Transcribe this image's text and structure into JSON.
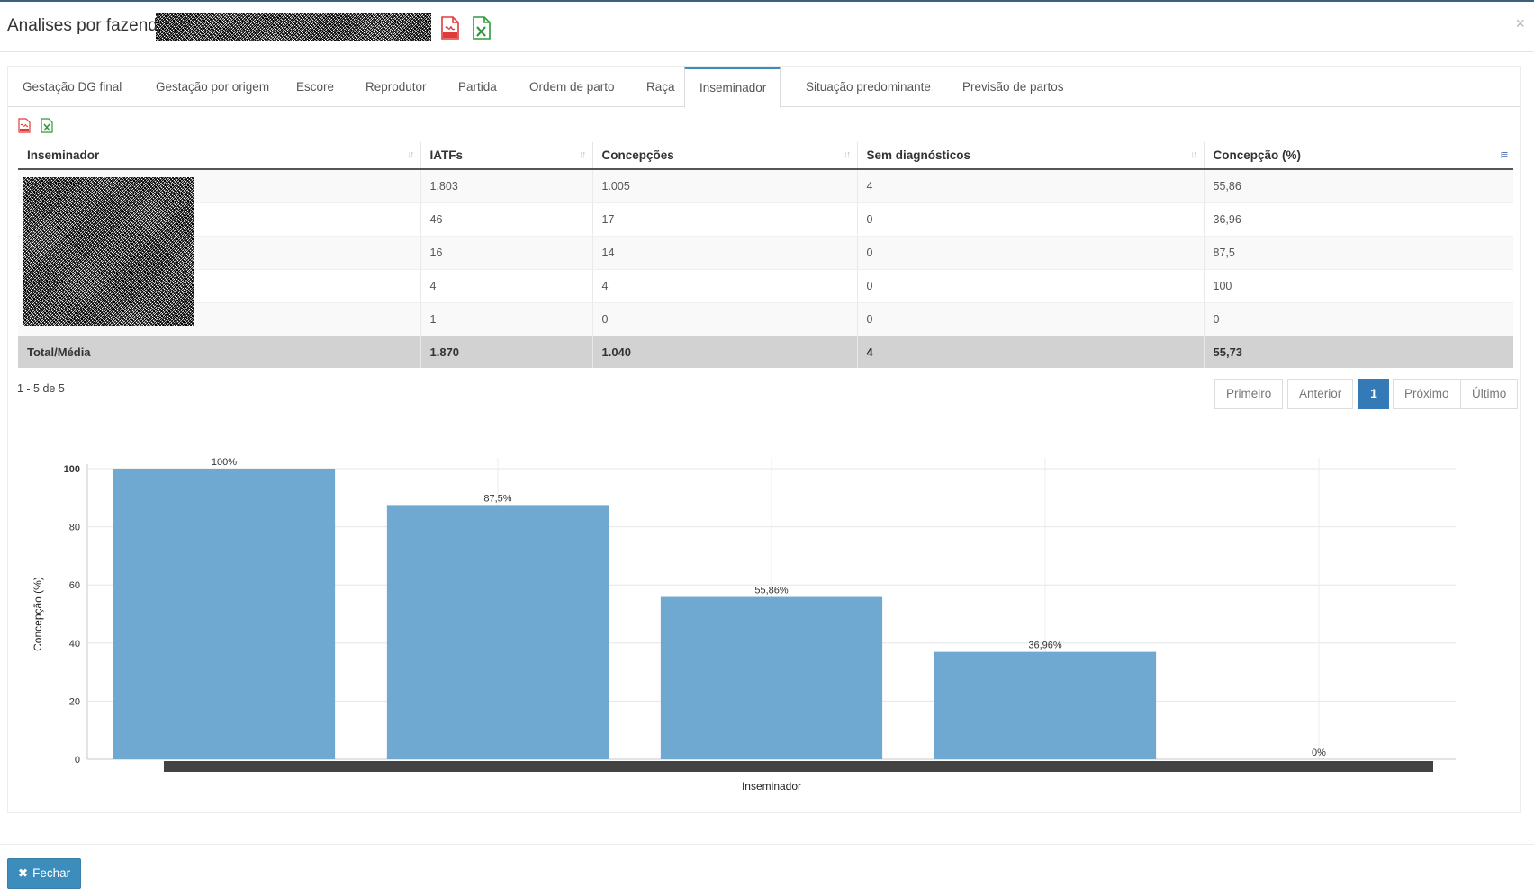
{
  "header": {
    "title": "Analises por fazendas",
    "close_symbol": "×"
  },
  "icons": {
    "pdf": "file-pdf-icon",
    "excel": "file-excel-icon",
    "close": "close-icon",
    "sort": "sort-icon",
    "times": "times-icon"
  },
  "tabs": [
    {
      "label": "Gestação DG final"
    },
    {
      "label": "Gestação por origem"
    },
    {
      "label": "Escore"
    },
    {
      "label": "Reprodutor"
    },
    {
      "label": "Partida"
    },
    {
      "label": "Ordem de parto"
    },
    {
      "label": "Raça"
    },
    {
      "label": "Inseminador",
      "active": true
    },
    {
      "label": "Situação predominante"
    },
    {
      "label": "Previsão de partos"
    }
  ],
  "table": {
    "columns": [
      "Inseminador",
      "IATFs",
      "Concepções",
      "Sem diagnósticos",
      "Concepção (%)"
    ],
    "rows": [
      {
        "iatfs": "1.803",
        "concepcoes": "1.005",
        "sem_diag": "4",
        "concepcao_pct": "55,86"
      },
      {
        "iatfs": "46",
        "concepcoes": "17",
        "sem_diag": "0",
        "concepcao_pct": "36,96"
      },
      {
        "iatfs": "16",
        "concepcoes": "14",
        "sem_diag": "0",
        "concepcao_pct": "87,5"
      },
      {
        "iatfs": "4",
        "concepcoes": "4",
        "sem_diag": "0",
        "concepcao_pct": "100"
      },
      {
        "iatfs": "1",
        "concepcoes": "0",
        "sem_diag": "0",
        "concepcao_pct": "0"
      }
    ],
    "total": {
      "label": "Total/Média",
      "iatfs": "1.870",
      "concepcoes": "1.040",
      "sem_diag": "4",
      "concepcao_pct": "55,73"
    }
  },
  "pagination": {
    "count_text": "1 - 5 de 5",
    "first": "Primeiro",
    "prev": "Anterior",
    "current": "1",
    "next": "Próximo",
    "last": "Último"
  },
  "chart_data": {
    "type": "bar",
    "title": "",
    "xlabel": "Inseminador",
    "ylabel": "Concepção (%)",
    "ylim": [
      0,
      100
    ],
    "yticks": [
      0,
      20,
      40,
      60,
      80,
      100
    ],
    "values": [
      100,
      87.5,
      55.86,
      36.96,
      0
    ],
    "data_labels": [
      "100%",
      "87,5%",
      "55,86%",
      "36,96%",
      "0%"
    ],
    "bar_color": "#6fa8d0",
    "grid": true
  },
  "footer": {
    "close_label": "Fechar"
  },
  "colors": {
    "accent": "#3c8dbc",
    "pdf_red": "#e03b3b",
    "excel_green": "#2e9a3a",
    "total_row_bg": "#d2d2d2"
  }
}
